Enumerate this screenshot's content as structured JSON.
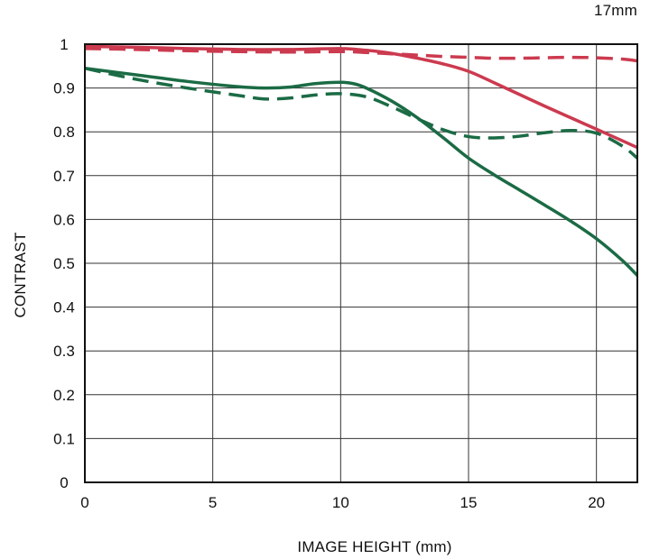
{
  "chart_data": {
    "type": "line",
    "title": "17mm",
    "xlabel": "IMAGE HEIGHT (mm)",
    "ylabel": "CONTRAST",
    "xlim": [
      0,
      21.6
    ],
    "ylim": [
      0,
      1
    ],
    "xticks": [
      0,
      5,
      10,
      15,
      20
    ],
    "yticks": [
      0,
      0.1,
      0.2,
      0.3,
      0.4,
      0.5,
      0.6,
      0.7,
      0.8,
      0.9,
      1
    ],
    "ytick_labels": [
      "0",
      "0.1",
      "0.2",
      "0.3",
      "0.4",
      "0.5",
      "0.6",
      "0.7",
      "0.8",
      "0.9",
      "1"
    ],
    "xtick_labels": [
      "0",
      "5",
      "10",
      "15",
      "20"
    ],
    "grid": true,
    "series": [
      {
        "color": "#cc3a4f",
        "dashed": false,
        "x": [
          0,
          2,
          4,
          6,
          8,
          10,
          11,
          12,
          13,
          14,
          15,
          16,
          17,
          18,
          19,
          20,
          21,
          21.6
        ],
        "y": [
          0.995,
          0.993,
          0.99,
          0.988,
          0.988,
          0.99,
          0.986,
          0.979,
          0.968,
          0.955,
          0.938,
          0.912,
          0.885,
          0.858,
          0.832,
          0.806,
          0.78,
          0.764
        ]
      },
      {
        "color": "#cc3a4f",
        "dashed": true,
        "x": [
          0,
          2,
          4,
          6,
          8,
          10,
          11,
          12,
          13,
          14,
          15,
          16,
          17,
          18,
          19,
          20,
          21,
          21.6
        ],
        "y": [
          0.99,
          0.988,
          0.985,
          0.983,
          0.982,
          0.983,
          0.981,
          0.978,
          0.975,
          0.972,
          0.97,
          0.968,
          0.968,
          0.969,
          0.97,
          0.969,
          0.966,
          0.962
        ]
      },
      {
        "color": "#1b6b45",
        "dashed": false,
        "x": [
          0,
          2,
          4,
          6,
          7,
          8,
          9,
          10,
          10.5,
          11,
          12,
          13,
          14,
          15,
          16,
          17,
          18,
          19,
          20,
          21,
          21.6
        ],
        "y": [
          0.945,
          0.93,
          0.915,
          0.903,
          0.9,
          0.902,
          0.91,
          0.913,
          0.91,
          0.9,
          0.87,
          0.832,
          0.787,
          0.74,
          0.702,
          0.667,
          0.632,
          0.596,
          0.556,
          0.507,
          0.472
        ]
      },
      {
        "color": "#1b6b45",
        "dashed": true,
        "x": [
          0,
          2,
          4,
          6,
          7,
          8,
          9,
          10,
          11,
          12,
          13,
          14,
          15,
          16,
          17,
          18,
          19,
          20,
          21,
          21.6
        ],
        "y": [
          0.945,
          0.92,
          0.9,
          0.883,
          0.875,
          0.877,
          0.884,
          0.887,
          0.88,
          0.857,
          0.83,
          0.805,
          0.789,
          0.786,
          0.79,
          0.798,
          0.803,
          0.797,
          0.768,
          0.74
        ]
      }
    ]
  }
}
